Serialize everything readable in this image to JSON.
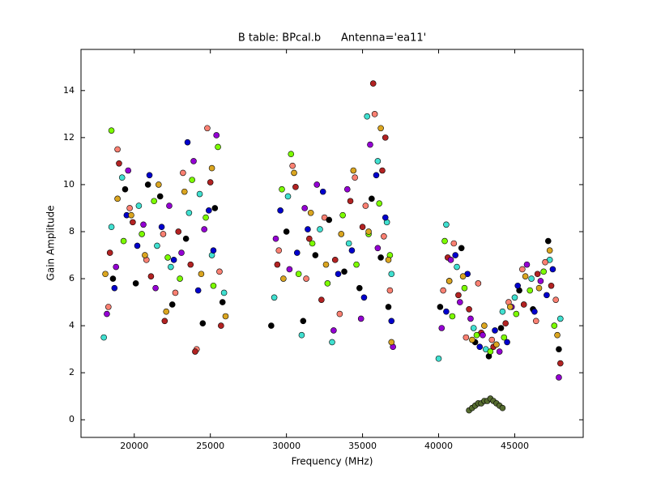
{
  "chart_data": {
    "type": "scatter",
    "title": "B table: BPcal.b      Antenna='ea11'",
    "x_label": "Frequency (MHz)",
    "y_label": "Gain Amplitude",
    "xlim": [
      16500,
      49500
    ],
    "ylim": [
      -0.75,
      15.75
    ],
    "xticks": [
      20000,
      25000,
      30000,
      35000,
      40000,
      45000
    ],
    "yticks": [
      0,
      2,
      4,
      6,
      8,
      10,
      12,
      14
    ],
    "grid": false,
    "series": [
      {
        "color": "#40e0d0",
        "x": [
          18000,
          18500,
          19200,
          20300,
          21500,
          22400,
          23600,
          24300,
          25100,
          25900,
          29200,
          30100,
          31000,
          32200,
          33000,
          34100,
          35300,
          36000,
          36600,
          36900,
          40000,
          40500,
          41200,
          42300,
          43100,
          44200,
          45000,
          46100,
          47300,
          48000
        ],
        "values": [
          3.5,
          8.2,
          10.3,
          9.1,
          7.4,
          6.5,
          8.8,
          9.6,
          7.0,
          5.4,
          5.2,
          9.5,
          3.6,
          8.1,
          3.3,
          7.5,
          12.9,
          11.0,
          8.4,
          6.2,
          2.6,
          8.3,
          6.5,
          3.9,
          3.0,
          4.6,
          5.2,
          6.0,
          6.8,
          4.3
        ]
      },
      {
        "color": "#fa8072",
        "x": [
          18300,
          18900,
          19700,
          20800,
          21900,
          22700,
          23200,
          24100,
          24800,
          25600,
          29500,
          30400,
          31300,
          32500,
          33500,
          34500,
          35200,
          35800,
          36400,
          36800,
          40300,
          41000,
          41800,
          42600,
          43500,
          44600,
          45500,
          46400,
          47000,
          47700
        ],
        "values": [
          4.8,
          11.5,
          9.0,
          6.8,
          7.9,
          5.4,
          10.5,
          3.0,
          12.4,
          6.3,
          7.2,
          10.8,
          6.0,
          8.6,
          4.5,
          10.3,
          9.1,
          13.0,
          7.8,
          5.5,
          5.5,
          7.5,
          3.5,
          5.8,
          3.4,
          5.0,
          6.4,
          4.2,
          6.7,
          5.1
        ]
      },
      {
        "color": "#000000",
        "x": [
          18600,
          19400,
          20100,
          20900,
          21700,
          22500,
          23400,
          24500,
          25300,
          25800,
          29000,
          30000,
          31100,
          31900,
          32800,
          33800,
          34800,
          35600,
          36200,
          36700,
          40100,
          40700,
          41500,
          42400,
          43300,
          44100,
          45300,
          46200,
          47200,
          47900
        ],
        "values": [
          6.0,
          9.8,
          5.8,
          10.0,
          9.5,
          4.9,
          7.7,
          4.1,
          9.0,
          5.0,
          4.0,
          8.0,
          4.2,
          7.0,
          8.5,
          6.3,
          5.6,
          9.4,
          6.9,
          4.8,
          4.8,
          5.9,
          7.3,
          3.3,
          2.7,
          3.9,
          5.5,
          4.7,
          7.6,
          3.0
        ]
      },
      {
        "color": "#b22222",
        "x": [
          18400,
          19000,
          19900,
          21100,
          22000,
          22900,
          23700,
          24000,
          25000,
          25700,
          29400,
          30600,
          31500,
          32300,
          33200,
          34200,
          35000,
          35700,
          36300,
          36500,
          40600,
          41300,
          42000,
          42800,
          43600,
          44400,
          45600,
          46500,
          47400,
          48000
        ],
        "values": [
          7.1,
          10.9,
          8.4,
          6.1,
          4.2,
          8.0,
          6.6,
          2.9,
          10.1,
          4.0,
          6.6,
          9.9,
          7.7,
          5.1,
          6.8,
          9.3,
          8.2,
          14.3,
          10.6,
          12.0,
          6.9,
          5.3,
          4.7,
          3.7,
          3.1,
          4.1,
          4.9,
          6.2,
          5.7,
          2.4
        ]
      },
      {
        "color": "#7cfc00",
        "x": [
          18500,
          19300,
          20500,
          21300,
          22200,
          23000,
          23800,
          24700,
          25200,
          25500,
          29700,
          30300,
          30800,
          31700,
          32700,
          33700,
          34600,
          35400,
          36100,
          36800,
          40400,
          40900,
          41700,
          42500,
          43400,
          44300,
          45100,
          46000,
          46900,
          47600
        ],
        "values": [
          12.3,
          7.6,
          7.9,
          9.3,
          6.9,
          6.0,
          10.2,
          8.6,
          5.7,
          11.6,
          9.8,
          11.3,
          6.2,
          7.5,
          5.8,
          8.7,
          6.6,
          7.9,
          9.2,
          7.0,
          7.6,
          4.4,
          5.6,
          3.6,
          2.9,
          3.5,
          4.5,
          5.5,
          6.3,
          4.0
        ]
      },
      {
        "color": "#9400d3",
        "x": [
          18200,
          18800,
          19600,
          20600,
          21400,
          22300,
          23100,
          23900,
          24600,
          25400,
          29300,
          30200,
          31200,
          32000,
          33100,
          34000,
          34900,
          35500,
          36000,
          37000,
          40200,
          40800,
          41400,
          42100,
          42900,
          44000,
          44800,
          45800,
          46700,
          47900
        ],
        "values": [
          4.5,
          6.5,
          10.6,
          8.3,
          5.6,
          9.1,
          7.1,
          11.0,
          8.1,
          12.1,
          7.7,
          6.4,
          9.0,
          10.0,
          3.8,
          9.8,
          4.3,
          11.7,
          7.3,
          3.1,
          3.9,
          6.8,
          5.0,
          4.3,
          3.6,
          2.9,
          4.8,
          6.6,
          5.9,
          1.8
        ]
      },
      {
        "color": "#0000cd",
        "x": [
          18700,
          19500,
          20200,
          21000,
          21800,
          22600,
          23500,
          24200,
          24900,
          25200,
          29600,
          30700,
          31400,
          32400,
          33400,
          34300,
          35100,
          35900,
          36500,
          36900,
          40500,
          41100,
          41900,
          42700,
          43700,
          44500,
          45200,
          46300,
          47100,
          47500
        ],
        "values": [
          5.6,
          8.7,
          7.4,
          10.4,
          8.2,
          6.8,
          11.8,
          5.5,
          8.9,
          7.2,
          8.9,
          7.1,
          8.1,
          9.7,
          6.2,
          7.2,
          5.2,
          10.4,
          8.6,
          4.2,
          4.6,
          7.0,
          6.2,
          3.1,
          3.8,
          3.3,
          5.7,
          4.6,
          5.3,
          6.4
        ]
      },
      {
        "color": "#daa520",
        "x": [
          18100,
          18900,
          19800,
          20700,
          21600,
          22100,
          23300,
          24400,
          25100,
          26000,
          29800,
          30500,
          31600,
          32600,
          33600,
          34400,
          35400,
          36200,
          36700,
          36900,
          40700,
          41600,
          42200,
          43000,
          43800,
          44700,
          45700,
          46600,
          47300,
          47800
        ],
        "values": [
          6.2,
          9.4,
          8.7,
          7.0,
          10.0,
          4.6,
          9.7,
          6.2,
          10.7,
          4.4,
          6.0,
          10.5,
          8.8,
          6.6,
          7.9,
          10.6,
          8.0,
          12.4,
          6.8,
          3.3,
          5.9,
          6.1,
          3.4,
          4.0,
          3.2,
          4.8,
          6.1,
          5.6,
          7.2,
          3.6
        ]
      },
      {
        "color": "#556b2f",
        "x": [
          42000,
          42200,
          42400,
          42600,
          42800,
          43000,
          43200,
          43400,
          43600,
          43800,
          44000,
          44200
        ],
        "values": [
          0.4,
          0.5,
          0.6,
          0.7,
          0.7,
          0.8,
          0.8,
          0.9,
          0.8,
          0.7,
          0.6,
          0.5
        ]
      }
    ]
  }
}
